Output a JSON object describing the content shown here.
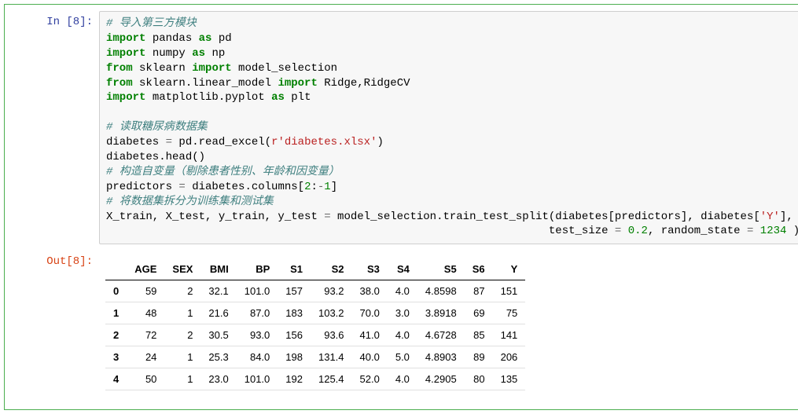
{
  "cell": {
    "in_prompt": "In  [8]:",
    "out_prompt": "Out[8]:",
    "code": {
      "c1": "# 导入第三方模块",
      "l2_kw1": "import",
      "l2_n1": " pandas ",
      "l2_kw2": "as",
      "l2_n2": " pd",
      "l3_kw1": "import",
      "l3_n1": " numpy ",
      "l3_kw2": "as",
      "l3_n2": " np",
      "l4_kw1": "from",
      "l4_n1": " sklearn ",
      "l4_kw2": "import",
      "l4_n2": " model_selection",
      "l5_kw1": "from",
      "l5_n1": " sklearn.linear_model ",
      "l5_kw2": "import",
      "l5_n2": " Ridge,RidgeCV",
      "l6_kw1": "import",
      "l6_n1": " matplotlib.pyplot ",
      "l6_kw2": "as",
      "l6_n2": " plt",
      "c2": "# 读取糖尿病数据集",
      "l8a": "diabetes ",
      "l8op": "=",
      "l8b": " pd.read_excel(",
      "l8s": "r'diabetes.xlsx'",
      "l8c": ")",
      "l9": "diabetes.head()",
      "c3": "# 构造自变量（剔除患者性别、年龄和因变量）",
      "l11a": "predictors ",
      "l11op": "=",
      "l11b": " diabetes.columns[",
      "l11n1": "2",
      "l11c": ":",
      "l11op2": "-",
      "l11n2": "1",
      "l11d": "]",
      "c4": "# 将数据集拆分为训练集和测试集",
      "l13a": "X_train, X_test, y_train, y_test ",
      "l13op": "=",
      "l13b": " model_selection.train_test_split(diabetes[predictors], diabetes[",
      "l13s": "'Y'",
      "l13c": "],",
      "l14pad": "                                                                   ",
      "l14a": "test_size ",
      "l14op": "=",
      "l14sp": " ",
      "l14n1": "0.2",
      "l14b": ", random_state ",
      "l14op2": "=",
      "l14sp2": " ",
      "l14n2": "1234",
      "l14c": " )"
    }
  },
  "table": {
    "columns": [
      "AGE",
      "SEX",
      "BMI",
      "BP",
      "S1",
      "S2",
      "S3",
      "S4",
      "S5",
      "S6",
      "Y"
    ],
    "index": [
      "0",
      "1",
      "2",
      "3",
      "4"
    ],
    "rows": [
      [
        "59",
        "2",
        "32.1",
        "101.0",
        "157",
        "93.2",
        "38.0",
        "4.0",
        "4.8598",
        "87",
        "151"
      ],
      [
        "48",
        "1",
        "21.6",
        "87.0",
        "183",
        "103.2",
        "70.0",
        "3.0",
        "3.8918",
        "69",
        "75"
      ],
      [
        "72",
        "2",
        "30.5",
        "93.0",
        "156",
        "93.6",
        "41.0",
        "4.0",
        "4.6728",
        "85",
        "141"
      ],
      [
        "24",
        "1",
        "25.3",
        "84.0",
        "198",
        "131.4",
        "40.0",
        "5.0",
        "4.8903",
        "89",
        "206"
      ],
      [
        "50",
        "1",
        "23.0",
        "101.0",
        "192",
        "125.4",
        "52.0",
        "4.0",
        "4.2905",
        "80",
        "135"
      ]
    ]
  },
  "colors": {
    "border": "#4caf50",
    "code_bg": "#f7f7f7",
    "code_border": "#cfcfcf",
    "comment": "#408080",
    "keyword": "#008000",
    "string": "#BA2121",
    "in_prompt": "#303F9F",
    "out_prompt": "#D84315"
  }
}
